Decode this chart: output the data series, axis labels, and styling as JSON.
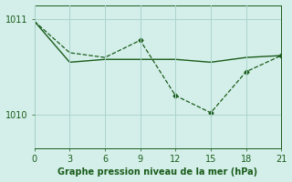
{
  "line1_x": [
    0,
    3,
    6,
    9,
    12,
    15,
    18,
    21
  ],
  "line1_y": [
    1010.98,
    1010.65,
    1010.6,
    1010.78,
    1010.2,
    1010.02,
    1010.45,
    1010.62
  ],
  "line2_x": [
    0,
    3,
    6,
    9,
    12,
    15,
    18,
    21
  ],
  "line2_y": [
    1010.98,
    1010.55,
    1010.58,
    1010.58,
    1010.58,
    1010.55,
    1010.6,
    1010.62
  ],
  "line1_style": "--",
  "line2_style": "-",
  "line_color": "#1a5c1a",
  "bg_color": "#d4efea",
  "grid_color": "#aad4cc",
  "xlabel": "Graphe pression niveau de la mer (hPa)",
  "xticks": [
    0,
    3,
    6,
    9,
    12,
    15,
    18,
    21
  ],
  "ytick_values": [
    1010,
    1011
  ],
  "xlim": [
    0,
    21
  ],
  "ylim": [
    1009.65,
    1011.15
  ],
  "figsize": [
    3.2,
    2.0
  ],
  "dpi": 100
}
